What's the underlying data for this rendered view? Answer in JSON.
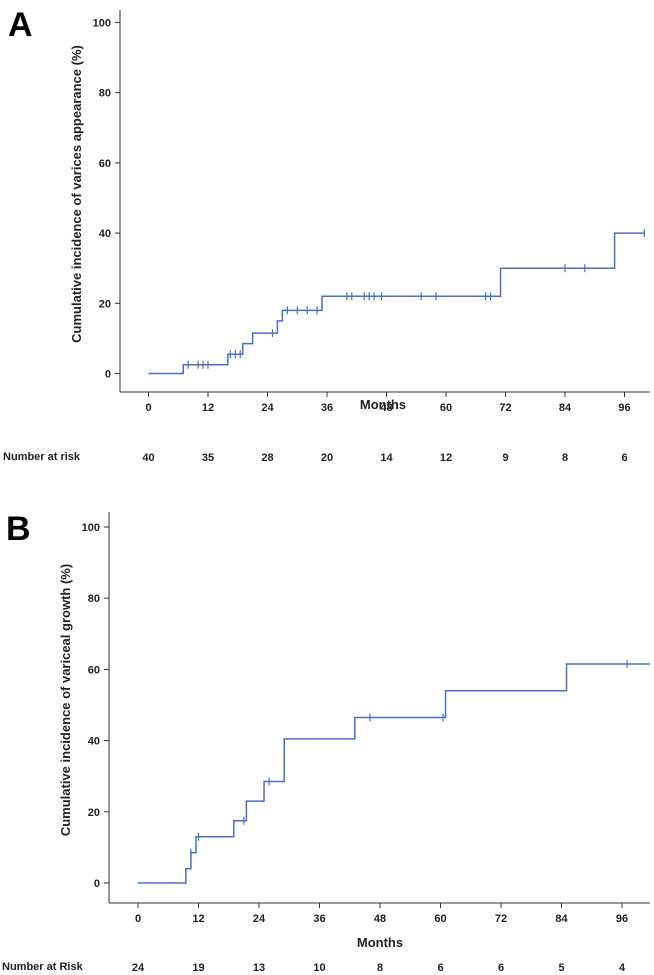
{
  "chart_data": [
    {
      "type": "line",
      "panel_label": "A",
      "xlabel": "Months",
      "ylabel": "Cumulative incidence of varices appearance (%)",
      "xlim": [
        -8,
        100
      ],
      "ylim": [
        0,
        100
      ],
      "xticks": [
        "0",
        "12",
        "24",
        "36",
        "48",
        "60",
        "72",
        "84",
        "96"
      ],
      "yticks": [
        "0",
        "20",
        "40",
        "60",
        "80",
        "100"
      ],
      "line_color": "#4a6fc8",
      "grid": false,
      "steps": [
        {
          "x": 0,
          "y": 0
        },
        {
          "x": 7,
          "y": 2.5
        },
        {
          "x": 16,
          "y": 5.5
        },
        {
          "x": 19,
          "y": 8.5
        },
        {
          "x": 21,
          "y": 11.5
        },
        {
          "x": 26,
          "y": 15
        },
        {
          "x": 27,
          "y": 18
        },
        {
          "x": 35,
          "y": 22
        },
        {
          "x": 71,
          "y": 30
        },
        {
          "x": 94,
          "y": 40
        }
      ],
      "x_end": 100,
      "censored": [
        {
          "x": 8,
          "y": 2.5
        },
        {
          "x": 10,
          "y": 2.5
        },
        {
          "x": 11,
          "y": 2.5
        },
        {
          "x": 12,
          "y": 2.5
        },
        {
          "x": 16.5,
          "y": 5.5
        },
        {
          "x": 17.5,
          "y": 5.5
        },
        {
          "x": 18.5,
          "y": 5.5
        },
        {
          "x": 25,
          "y": 11.5
        },
        {
          "x": 28,
          "y": 18
        },
        {
          "x": 30,
          "y": 18
        },
        {
          "x": 32,
          "y": 18
        },
        {
          "x": 34,
          "y": 18
        },
        {
          "x": 40,
          "y": 22
        },
        {
          "x": 41,
          "y": 22
        },
        {
          "x": 43.5,
          "y": 22
        },
        {
          "x": 44.5,
          "y": 22
        },
        {
          "x": 45.5,
          "y": 22
        },
        {
          "x": 47,
          "y": 22
        },
        {
          "x": 55,
          "y": 22
        },
        {
          "x": 58,
          "y": 22
        },
        {
          "x": 68,
          "y": 22
        },
        {
          "x": 69,
          "y": 22
        },
        {
          "x": 84,
          "y": 30
        },
        {
          "x": 88,
          "y": 30
        },
        {
          "x": 100,
          "y": 40
        }
      ],
      "risk_label": "Number at risk",
      "risk_values": [
        "40",
        "35",
        "28",
        "20",
        "14",
        "12",
        "9",
        "8",
        "6"
      ]
    },
    {
      "type": "line",
      "panel_label": "B",
      "xlabel": "Months",
      "ylabel": "Cumulative incidence of variceal growth (%)",
      "xlim": [
        -8,
        100
      ],
      "ylim": [
        0,
        100
      ],
      "xticks": [
        "0",
        "12",
        "24",
        "36",
        "48",
        "60",
        "72",
        "84",
        "96"
      ],
      "yticks": [
        "0",
        "20",
        "40",
        "60",
        "80",
        "100"
      ],
      "line_color": "#4a6fc8",
      "grid": false,
      "steps": [
        {
          "x": 0,
          "y": 0
        },
        {
          "x": 9.5,
          "y": 4
        },
        {
          "x": 10.5,
          "y": 8.5
        },
        {
          "x": 11.5,
          "y": 13
        },
        {
          "x": 19,
          "y": 17.5
        },
        {
          "x": 21.5,
          "y": 23
        },
        {
          "x": 25,
          "y": 28.5
        },
        {
          "x": 29,
          "y": 40.5
        },
        {
          "x": 43,
          "y": 46.5
        },
        {
          "x": 61,
          "y": 54
        },
        {
          "x": 85,
          "y": 61.5
        }
      ],
      "x_end": 104,
      "censored": [
        {
          "x": 10.5,
          "y": 8.5
        },
        {
          "x": 12,
          "y": 13
        },
        {
          "x": 21,
          "y": 17.5
        },
        {
          "x": 26,
          "y": 28.5
        },
        {
          "x": 46,
          "y": 46.5
        },
        {
          "x": 60.5,
          "y": 46.5
        },
        {
          "x": 97,
          "y": 61.5
        }
      ],
      "risk_label": "Number at Risk",
      "risk_values": [
        "24",
        "19",
        "13",
        "10",
        "8",
        "6",
        "6",
        "5",
        "4"
      ]
    }
  ]
}
